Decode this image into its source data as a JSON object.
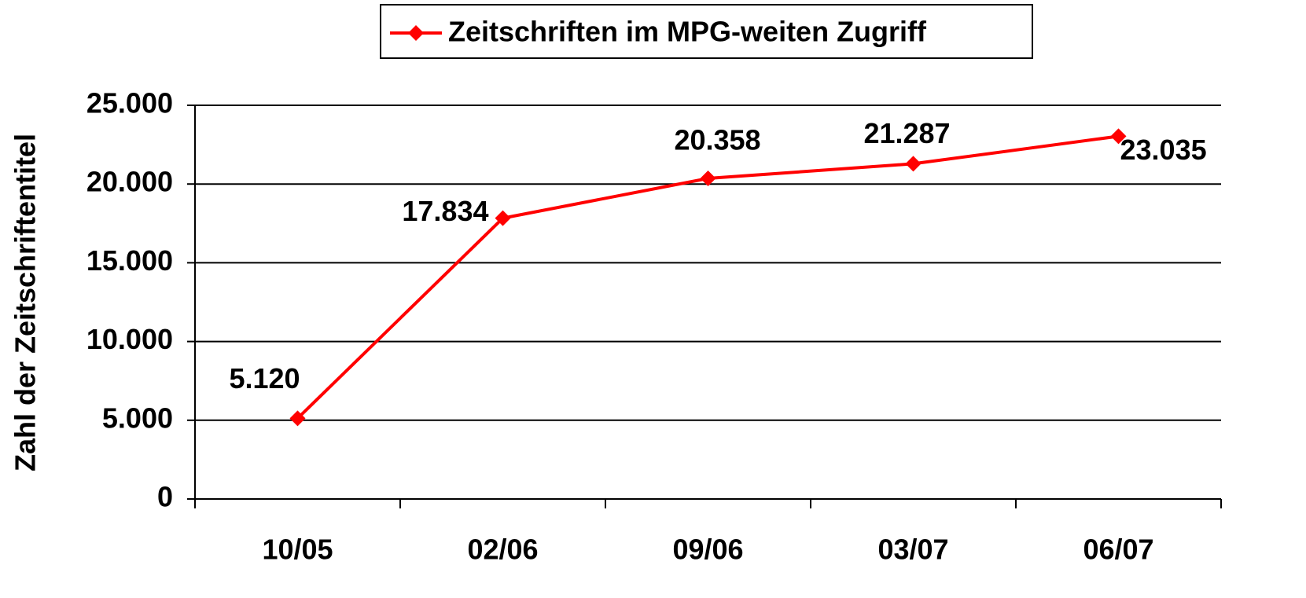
{
  "chart_data": {
    "type": "line",
    "y_label": "Zahl der Zeitschriftentitel",
    "categories": [
      "10/05",
      "02/06",
      "09/06",
      "03/07",
      "06/07"
    ],
    "series": [
      {
        "name": "Zeitschriften im MPG-weiten Zugriff",
        "color": "#ff0000",
        "values": [
          5120,
          17834,
          20358,
          21287,
          23035
        ],
        "value_labels": [
          "5.120",
          "17.834",
          "20.358",
          "21.287",
          "23.035"
        ]
      }
    ],
    "ylim": [
      0,
      25000
    ],
    "yticks": [
      0,
      {
        "value": 5000,
        "label": "5.000"
      },
      {
        "value": 10000,
        "label": "10.000"
      },
      {
        "value": 15000,
        "label": "15.000"
      },
      {
        "value": 20000,
        "label": "20.000"
      },
      {
        "value": 25000,
        "label": "25.000"
      }
    ],
    "grid": true,
    "legend": "top"
  }
}
